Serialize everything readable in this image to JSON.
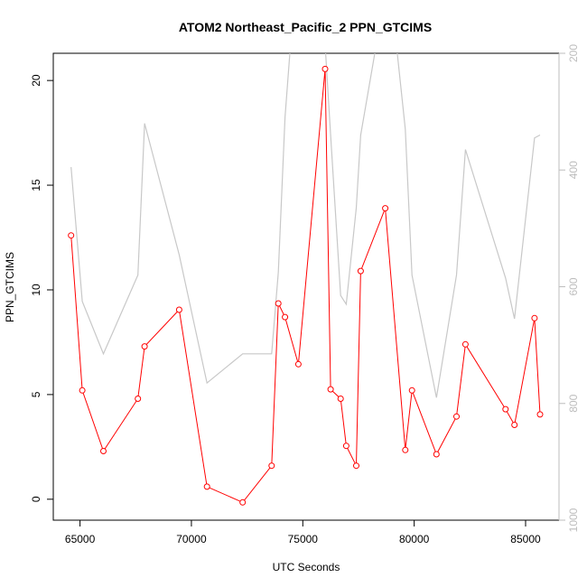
{
  "chart_data": {
    "type": "line",
    "title": "ATOM2 Northeast_Pacific_2 PPN_GTCIMS",
    "xlabel": "UTC Seconds",
    "ylabel": "PPN_GTCIMS",
    "xlim": [
      63800,
      86500
    ],
    "ylim": [
      -1,
      21.3
    ],
    "y2lim": [
      1000,
      200
    ],
    "x_ticks": [
      65000,
      70000,
      75000,
      80000,
      85000
    ],
    "x_tick_labels": [
      "65000",
      "70000",
      "75000",
      "80000",
      "85000"
    ],
    "y_ticks": [
      0,
      5,
      10,
      15,
      20
    ],
    "y_tick_labels": [
      "0",
      "5",
      "10",
      "15",
      "20"
    ],
    "y2_ticks": [
      200,
      400,
      600,
      800,
      1000
    ],
    "y2_tick_labels": [
      "200",
      "400",
      "600",
      "800",
      "1000"
    ],
    "grid": false,
    "colors": {
      "ppn": "#ff0000",
      "pressure": "#c8c8c8",
      "right_axis": "#bdbdbd"
    },
    "series": [
      {
        "role": "ppn",
        "style": "line+points",
        "x": [
          64600,
          65100,
          66050,
          67600,
          67900,
          69450,
          70700,
          72300,
          73600,
          73900,
          74200,
          74800,
          76000,
          76250,
          76700,
          76950,
          77400,
          77600,
          78700,
          79600,
          79900,
          81000,
          81900,
          82300,
          84100,
          84500,
          85400,
          85650
        ],
        "y": [
          12.6,
          5.2,
          2.3,
          4.8,
          7.3,
          9.05,
          0.6,
          -0.15,
          1.6,
          9.35,
          8.7,
          6.45,
          20.55,
          5.25,
          4.8,
          2.55,
          1.6,
          10.9,
          13.9,
          2.35,
          5.2,
          2.15,
          3.95,
          7.4,
          4.3,
          3.55,
          8.65,
          4.05
        ]
      },
      {
        "role": "pressure",
        "style": "line",
        "x": [
          64600,
          65100,
          66050,
          67600,
          67900,
          69450,
          70700,
          72300,
          73600,
          73900,
          74200,
          74450,
          76000,
          76250,
          76700,
          76950,
          77400,
          77600,
          78300,
          79200,
          79600,
          79900,
          81000,
          81900,
          82300,
          84100,
          84500,
          85400,
          85650
        ],
        "y": [
          395,
          625,
          715,
          580,
          320,
          545,
          765,
          715,
          715,
          575,
          310,
          185,
          185,
          340,
          615,
          630,
          465,
          340,
          185,
          185,
          330,
          580,
          790,
          580,
          365,
          585,
          655,
          345,
          340
        ]
      }
    ]
  }
}
